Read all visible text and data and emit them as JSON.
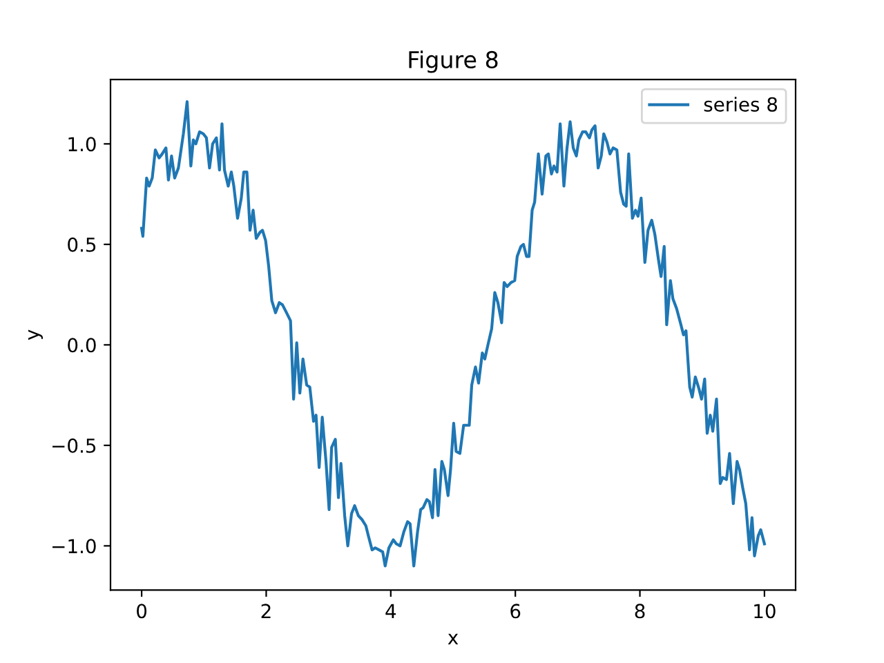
{
  "chart_data": {
    "type": "line",
    "title": "Figure 8",
    "xlabel": "x",
    "ylabel": "y",
    "xlim": [
      -0.5,
      10.5
    ],
    "ylim": [
      -1.22,
      1.32
    ],
    "xticks": [
      0,
      2,
      4,
      6,
      8,
      10
    ],
    "yticks": [
      {
        "value": -1.0,
        "label": "−1.0"
      },
      {
        "value": -0.5,
        "label": "−0.5"
      },
      {
        "value": 0.0,
        "label": "0.0"
      },
      {
        "value": 0.5,
        "label": "0.5"
      },
      {
        "value": 1.0,
        "label": "1.0"
      }
    ],
    "grid": false,
    "legend": "top right",
    "marker": "none",
    "line_style": "solid",
    "series": [
      {
        "name": "series 8",
        "color": "#1f77b4",
        "x": [
          0.0,
          0.02,
          0.08,
          0.12,
          0.17,
          0.22,
          0.28,
          0.33,
          0.39,
          0.43,
          0.48,
          0.53,
          0.59,
          0.67,
          0.73,
          0.79,
          0.83,
          0.87,
          0.93,
          0.99,
          1.04,
          1.09,
          1.14,
          1.2,
          1.25,
          1.29,
          1.33,
          1.39,
          1.44,
          1.48,
          1.54,
          1.6,
          1.64,
          1.69,
          1.74,
          1.79,
          1.84,
          1.9,
          1.94,
          1.99,
          2.04,
          2.09,
          2.15,
          2.21,
          2.26,
          2.31,
          2.39,
          2.44,
          2.49,
          2.54,
          2.59,
          2.65,
          2.7,
          2.76,
          2.8,
          2.85,
          2.9,
          2.96,
          3.01,
          3.05,
          3.11,
          3.16,
          3.2,
          3.26,
          3.31,
          3.37,
          3.42,
          3.48,
          3.54,
          3.6,
          3.64,
          3.7,
          3.75,
          3.81,
          3.87,
          3.91,
          3.97,
          4.04,
          4.09,
          4.15,
          4.21,
          4.27,
          4.31,
          4.37,
          4.43,
          4.48,
          4.52,
          4.58,
          4.62,
          4.67,
          4.71,
          4.76,
          4.82,
          4.86,
          4.92,
          4.96,
          5.01,
          5.05,
          5.11,
          5.17,
          5.26,
          5.3,
          5.36,
          5.41,
          5.47,
          5.51,
          5.56,
          5.62,
          5.67,
          5.72,
          5.78,
          5.82,
          5.87,
          5.93,
          5.99,
          6.03,
          6.09,
          6.13,
          6.18,
          6.22,
          6.27,
          6.31,
          6.37,
          6.43,
          6.49,
          6.53,
          6.58,
          6.62,
          6.67,
          6.72,
          6.78,
          6.83,
          6.88,
          6.93,
          6.98,
          7.02,
          7.08,
          7.13,
          7.19,
          7.23,
          7.28,
          7.33,
          7.38,
          7.42,
          7.47,
          7.52,
          7.57,
          7.63,
          7.69,
          7.74,
          7.78,
          7.82,
          7.88,
          7.93,
          7.97,
          8.02,
          8.08,
          8.13,
          8.19,
          8.24,
          8.3,
          8.34,
          8.39,
          8.43,
          8.49,
          8.53,
          8.59,
          8.65,
          8.7,
          8.74,
          8.8,
          8.84,
          8.89,
          8.95,
          8.99,
          9.04,
          9.08,
          9.13,
          9.17,
          9.23,
          9.29,
          9.33,
          9.39,
          9.44,
          9.5,
          9.56,
          9.6,
          9.65,
          9.7,
          9.76,
          9.8,
          9.84,
          9.9,
          9.94,
          10.0
        ],
        "values": [
          0.58,
          0.54,
          0.83,
          0.79,
          0.83,
          0.97,
          0.93,
          0.95,
          0.98,
          0.82,
          0.94,
          0.83,
          0.88,
          1.05,
          1.21,
          0.89,
          1.02,
          1.0,
          1.06,
          1.05,
          1.03,
          0.88,
          1.0,
          1.03,
          0.87,
          1.1,
          0.87,
          0.79,
          0.86,
          0.79,
          0.63,
          0.73,
          0.86,
          0.86,
          0.57,
          0.67,
          0.53,
          0.56,
          0.57,
          0.52,
          0.39,
          0.22,
          0.16,
          0.21,
          0.2,
          0.17,
          0.12,
          -0.27,
          0.01,
          -0.24,
          -0.07,
          -0.2,
          -0.21,
          -0.38,
          -0.35,
          -0.61,
          -0.36,
          -0.58,
          -0.82,
          -0.51,
          -0.47,
          -0.76,
          -0.59,
          -0.85,
          -1.0,
          -0.84,
          -0.8,
          -0.85,
          -0.87,
          -0.9,
          -0.95,
          -1.02,
          -1.01,
          -1.02,
          -1.03,
          -1.1,
          -1.01,
          -0.97,
          -0.99,
          -1.0,
          -0.93,
          -0.88,
          -0.89,
          -1.1,
          -0.93,
          -0.82,
          -0.81,
          -0.77,
          -0.78,
          -0.86,
          -0.62,
          -0.85,
          -0.58,
          -0.62,
          -0.75,
          -0.62,
          -0.39,
          -0.53,
          -0.54,
          -0.4,
          -0.4,
          -0.2,
          -0.11,
          -0.19,
          -0.04,
          -0.07,
          0.0,
          0.08,
          0.26,
          0.21,
          0.11,
          0.31,
          0.29,
          0.31,
          0.32,
          0.44,
          0.49,
          0.5,
          0.44,
          0.44,
          0.67,
          0.71,
          0.95,
          0.75,
          0.94,
          0.95,
          0.85,
          0.89,
          0.86,
          1.1,
          0.79,
          0.98,
          1.11,
          0.98,
          0.94,
          1.02,
          1.06,
          1.06,
          1.03,
          1.07,
          1.09,
          0.88,
          0.94,
          1.05,
          1.01,
          0.95,
          0.98,
          0.97,
          0.76,
          0.7,
          0.69,
          0.95,
          0.63,
          0.67,
          0.64,
          0.73,
          0.41,
          0.57,
          0.62,
          0.55,
          0.42,
          0.34,
          0.49,
          0.1,
          0.32,
          0.23,
          0.18,
          0.11,
          0.05,
          0.07,
          -0.21,
          -0.26,
          -0.16,
          -0.22,
          -0.27,
          -0.17,
          -0.44,
          -0.35,
          -0.43,
          -0.27,
          -0.69,
          -0.66,
          -0.67,
          -0.54,
          -0.79,
          -0.58,
          -0.62,
          -0.71,
          -0.79,
          -1.02,
          -0.86,
          -1.05,
          -0.95,
          -0.92,
          -0.99
        ]
      }
    ]
  }
}
